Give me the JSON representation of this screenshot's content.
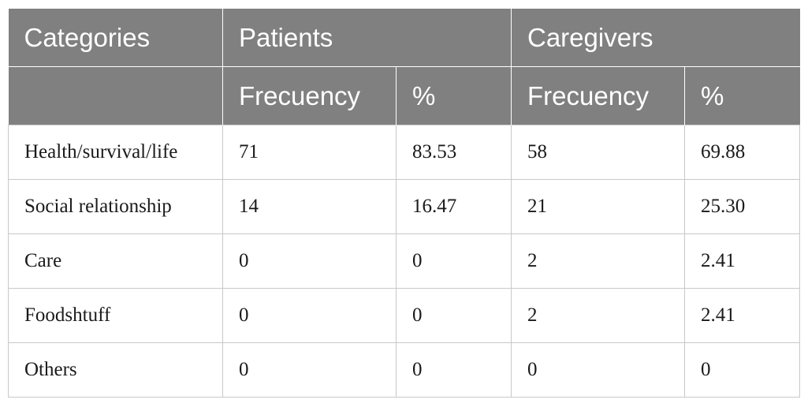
{
  "table": {
    "header_row1": {
      "categories": "Categories",
      "group_patients": "Patients",
      "group_caregivers": "Caregivers"
    },
    "header_row2": {
      "patients_frequency": "Frecuency",
      "patients_percent": "%",
      "caregivers_frequency": "Frecuency",
      "caregivers_percent": "%"
    },
    "rows": [
      {
        "category": "Health/survival/life",
        "patients_freq": "71",
        "patients_pct": "83.53",
        "caregivers_freq": "58",
        "caregivers_pct": "69.88"
      },
      {
        "category": "Social relationship",
        "patients_freq": "14",
        "patients_pct": "16.47",
        "caregivers_freq": "21",
        "caregivers_pct": "25.30"
      },
      {
        "category": "Care",
        "patients_freq": "0",
        "patients_pct": "0",
        "caregivers_freq": "2",
        "caregivers_pct": "2.41"
      },
      {
        "category": "Foodshtuff",
        "patients_freq": "0",
        "patients_pct": "0",
        "caregivers_freq": "2",
        "caregivers_pct": "2.41"
      },
      {
        "category": "Others",
        "patients_freq": "0",
        "patients_pct": "0",
        "caregivers_freq": "0",
        "caregivers_pct": "0"
      }
    ]
  },
  "colors": {
    "header_bg": "#808080",
    "header_text": "#ffffff",
    "grid_line": "#c8c8c8"
  }
}
